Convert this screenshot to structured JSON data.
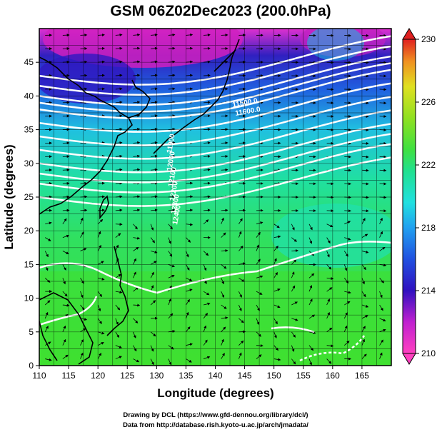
{
  "title": "GSM 06Z02Dec2023 (200.0hPa)",
  "xlabel": "Longitude (degrees)",
  "ylabel": "Latitude  (degrees)",
  "credit_line1": "Drawing by DCL (https://www.gfd-dennou.org/library/dcl/)",
  "credit_line2": "Data from http://database.rish.kyoto-u.ac.jp/arch/jmadata/",
  "map": {
    "lon_range": [
      110,
      170
    ],
    "lat_range": [
      0,
      50
    ],
    "lon_ticks": [
      "110",
      "115",
      "120",
      "125",
      "130",
      "135",
      "140",
      "145",
      "150",
      "155",
      "160",
      "165"
    ],
    "lat_ticks": [
      "0",
      "5",
      "10",
      "15",
      "20",
      "25",
      "30",
      "35",
      "40",
      "45"
    ]
  },
  "colorbar": {
    "range": [
      210,
      230
    ],
    "ticks": [
      "210",
      "214",
      "218",
      "222",
      "226",
      "230"
    ],
    "colors": [
      "#ff40c0",
      "#d020d0",
      "#4010c0",
      "#2050e0",
      "#20a0f0",
      "#20e0d0",
      "#20e090",
      "#40e040",
      "#80e020",
      "#c0e020",
      "#f0c020",
      "#f08020",
      "#e02020"
    ]
  },
  "contour_labels": [
    "11500.0",
    "11600.0",
    "11900",
    "12000",
    "12100",
    "12200",
    "12300",
    "12400"
  ],
  "colors": {
    "background": "#ffffff",
    "contour": "#ffffff",
    "coast": "#000000",
    "grid": "#000000"
  }
}
